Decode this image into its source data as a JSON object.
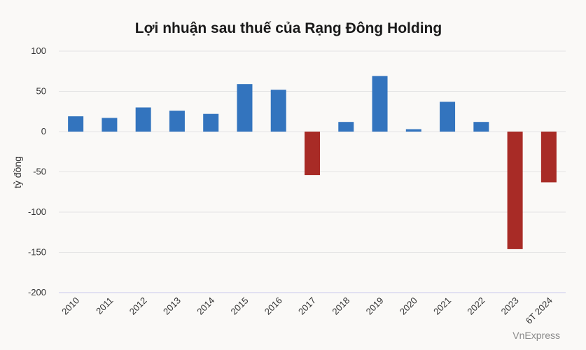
{
  "chart_data": {
    "type": "bar",
    "title": "Lợi nhuận sau thuế của Rạng Đông Holding",
    "ylabel": "tỷ đồng",
    "xlabel": "",
    "source": "VnExpress",
    "ylim": [
      -200,
      100
    ],
    "yticks": [
      100,
      50,
      0,
      -50,
      -100,
      -150,
      -200
    ],
    "grid": true,
    "categories": [
      "2010",
      "2011",
      "2012",
      "2013",
      "2014",
      "2015",
      "2016",
      "2017",
      "2018",
      "2019",
      "2020",
      "2021",
      "2022",
      "2023",
      "6T 2024"
    ],
    "values": [
      19,
      17,
      30,
      26,
      22,
      59,
      52,
      -54,
      12,
      69,
      3,
      37,
      12,
      -146,
      -63
    ],
    "colors": {
      "positive": "#3374be",
      "negative": "#a82b26",
      "grid": "#e4e4e4",
      "axis": "#c9c9ee"
    }
  }
}
